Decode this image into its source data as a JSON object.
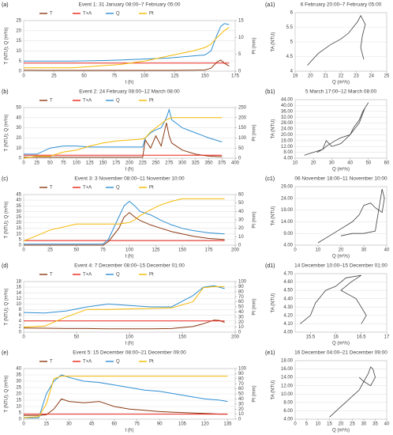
{
  "chart_data": [
    {
      "type": "line",
      "panel_label": "(a)",
      "title": "Event 1: 31 January 08:00–7 February 05:00",
      "xlabel": "t (h)",
      "ylabel": "T (NTU); Q (m³/s)",
      "y2label": "Pt (mm)",
      "x": [
        0,
        20,
        40,
        60,
        80,
        100,
        120,
        140,
        150,
        155,
        160,
        163,
        166,
        170
      ],
      "series": [
        {
          "name": "T",
          "color": "#8b3a14",
          "values": [
            0.5,
            0.4,
            0.4,
            0.4,
            0.4,
            0.4,
            0.4,
            0.5,
            0.6,
            1.5,
            4.5,
            5.5,
            4,
            2.5
          ]
        },
        {
          "name": "T+A",
          "color": "#e8231b",
          "values": [
            4,
            4,
            4,
            4,
            4,
            4,
            4,
            4,
            4,
            4,
            4,
            4,
            4,
            4
          ]
        },
        {
          "name": "Q",
          "color": "#2f8fd3",
          "values": [
            5,
            5,
            5,
            5.2,
            5.5,
            6,
            6.5,
            7.5,
            8,
            10,
            18,
            22,
            23.5,
            23
          ]
        },
        {
          "name": "Pt",
          "color": "#f5b800",
          "axis": "y2",
          "values": [
            1,
            1,
            1,
            1.5,
            2,
            3,
            4.5,
            6,
            7,
            8,
            10,
            11,
            12,
            13
          ]
        }
      ],
      "xlim": [
        0,
        175
      ],
      "xticks": [
        0,
        25,
        50,
        75,
        100,
        125,
        150,
        175
      ],
      "ylim": [
        0,
        25
      ],
      "yticks": [
        0,
        5,
        10,
        15,
        20,
        25
      ],
      "y2lim": [
        0,
        15
      ],
      "y2ticks": [
        0,
        5,
        10,
        15
      ],
      "grid": true
    },
    {
      "type": "line",
      "panel_label": "(a1)",
      "title": "6 February 20:00–7 February 05:00",
      "xlabel": "Q (m³/s)",
      "ylabel": "TA (NTU)",
      "color": "#404040",
      "x": [
        19.8,
        20.5,
        21.3,
        22,
        22.5,
        22.8,
        23.1,
        23.3,
        23.6,
        23.4,
        23.3,
        23.5
      ],
      "values": [
        4.2,
        4.6,
        4.9,
        5.1,
        5.3,
        5.5,
        5.7,
        5.9,
        5.6,
        5.2,
        4.8,
        4.4
      ],
      "xlim": [
        19,
        25
      ],
      "xticks": [
        19,
        20,
        21,
        22,
        23,
        24,
        25
      ],
      "ylim": [
        4,
        6
      ],
      "yticks": [
        4,
        4.5,
        5,
        5.5,
        6
      ],
      "grid": true
    },
    {
      "type": "line",
      "panel_label": "(b)",
      "title": "Event 2: 24 February 08:00–12 March 08:00",
      "xlabel": "t (h)",
      "ylabel": "T (NTU); Q (m³/s)",
      "y2label": "Pt (mm)",
      "x": [
        0,
        25,
        50,
        75,
        100,
        125,
        150,
        175,
        200,
        225,
        230,
        240,
        250,
        260,
        270,
        275,
        280,
        300,
        325,
        350,
        375
      ],
      "series": [
        {
          "name": "T",
          "color": "#8b3a14",
          "values": [
            1,
            1,
            1,
            1,
            1,
            1,
            1,
            1,
            1,
            1,
            18,
            10,
            22,
            12,
            35,
            22,
            15,
            8,
            4,
            2,
            1.5
          ]
        },
        {
          "name": "T+A",
          "color": "#e8231b",
          "values": [
            3,
            3,
            3,
            3,
            3,
            3,
            3,
            3,
            3,
            3,
            3,
            3,
            3,
            3,
            3,
            3,
            3,
            3,
            3,
            3,
            3
          ]
        },
        {
          "name": "Q",
          "color": "#2f8fd3",
          "values": [
            4,
            4,
            10,
            12,
            12,
            11,
            11,
            11,
            11,
            11,
            20,
            25,
            28,
            30,
            40,
            48,
            38,
            30,
            25,
            20,
            16
          ]
        },
        {
          "name": "Pt",
          "color": "#f5b800",
          "axis": "y2",
          "values": [
            0,
            10,
            10,
            30,
            40,
            60,
            75,
            85,
            90,
            95,
            100,
            130,
            150,
            170,
            190,
            195,
            200,
            200,
            200,
            200,
            200
          ]
        }
      ],
      "xlim": [
        0,
        400
      ],
      "xticks": [
        0,
        25,
        50,
        75,
        100,
        125,
        150,
        175,
        200,
        225,
        250,
        275,
        300,
        325,
        350,
        375,
        400
      ],
      "ylim": [
        0,
        50
      ],
      "yticks": [
        0,
        10,
        20,
        30,
        40,
        50
      ],
      "y2lim": [
        0,
        250
      ],
      "y2ticks": [
        0,
        50,
        100,
        150,
        200,
        250
      ],
      "grid": true
    },
    {
      "type": "line",
      "panel_label": "(b1)",
      "title": "5 March 17:00–12 March 08:00",
      "xlabel": "Q (m³/s)",
      "ylabel": "TA (NTU)",
      "color": "#404040",
      "x": [
        15,
        20,
        25,
        27,
        30,
        35,
        40,
        45,
        48,
        50,
        47,
        45,
        42,
        40,
        35,
        32,
        28,
        25,
        22
      ],
      "values": [
        6,
        8,
        10,
        16,
        12,
        14,
        20,
        28,
        38,
        42,
        36,
        30,
        25,
        20,
        18,
        16,
        13,
        10,
        8
      ],
      "xlim": [
        10,
        60
      ],
      "xticks": [
        10,
        20,
        30,
        40,
        50,
        60
      ],
      "ylim": [
        4,
        44
      ],
      "yticks": [
        {
          "value": 4,
          "label": "4.00"
        },
        {
          "value": 8,
          "label": "8.00"
        },
        {
          "value": 12,
          "label": "12.00"
        },
        {
          "value": 16,
          "label": "16.00"
        },
        {
          "value": 20,
          "label": "20.00"
        },
        {
          "value": 24,
          "label": "24.00"
        },
        {
          "value": 28,
          "label": "28.00"
        },
        {
          "value": 32,
          "label": "32.00"
        },
        {
          "value": 36,
          "label": "36.00"
        },
        {
          "value": 40,
          "label": "40.00"
        },
        {
          "value": 44,
          "label": "44.00"
        }
      ],
      "grid": true
    },
    {
      "type": "line",
      "panel_label": "(c)",
      "title": "Event 3: 3 November 08:00–11 November 10:00",
      "xlabel": "t (h)",
      "ylabel": "T (NTU); Q (m³/s)",
      "y2label": "Pt (mm)",
      "x": [
        0,
        10,
        25,
        50,
        75,
        80,
        90,
        95,
        100,
        105,
        110,
        120,
        130,
        140,
        150,
        160,
        175,
        190
      ],
      "series": [
        {
          "name": "T",
          "color": "#8b3a14",
          "values": [
            0,
            0,
            0,
            0,
            0,
            3,
            15,
            25,
            29,
            25,
            22,
            18,
            15,
            12,
            10,
            8,
            6,
            5
          ]
        },
        {
          "name": "T+A",
          "color": "#e8231b",
          "values": [
            4,
            4,
            4,
            4,
            4,
            4,
            4,
            4,
            4,
            4,
            4,
            4,
            4,
            4,
            4,
            4,
            4,
            4
          ]
        },
        {
          "name": "Q",
          "color": "#2f8fd3",
          "values": [
            1,
            1,
            1,
            1,
            1,
            5,
            25,
            35,
            39,
            35,
            30,
            27,
            22,
            18,
            15,
            13,
            11,
            10
          ]
        },
        {
          "name": "Pt",
          "color": "#f5b800",
          "axis": "y2",
          "values": [
            5,
            10,
            18,
            25,
            25,
            25,
            25,
            26,
            27,
            30,
            35,
            42,
            48,
            52,
            55,
            55,
            55,
            55
          ]
        }
      ],
      "xlim": [
        0,
        200
      ],
      "xticks": [
        0,
        25,
        50,
        75,
        100,
        125,
        150,
        175,
        200
      ],
      "ylim": [
        0,
        45
      ],
      "yticks": [
        0,
        5,
        10,
        15,
        20,
        25,
        30,
        35,
        40,
        45
      ],
      "y2lim": [
        0,
        60
      ],
      "y2ticks": [
        0,
        10,
        20,
        30,
        40,
        50,
        60
      ],
      "grid": true
    },
    {
      "type": "line",
      "panel_label": "(c1)",
      "title": "06 November 18:00–11 November 10:00",
      "xlabel": "Q (m³/s)",
      "ylabel": "TA (NTU)",
      "color": "#404040",
      "x": [
        10,
        15,
        20,
        25,
        28,
        30,
        33,
        35,
        38,
        39,
        38,
        35,
        30,
        25,
        20
      ],
      "values": [
        5,
        8,
        11,
        14,
        17,
        21,
        22,
        20,
        18,
        24,
        28,
        10,
        9,
        9,
        8
      ],
      "xlim": [
        0,
        40
      ],
      "xticks": [
        0,
        10,
        20,
        30,
        40
      ],
      "ylim": [
        4,
        29
      ],
      "yticks": [
        {
          "value": 4,
          "label": "4.00"
        },
        {
          "value": 9,
          "label": "9.00"
        },
        {
          "value": 14,
          "label": "14.00"
        },
        {
          "value": 19,
          "label": "19.00"
        },
        {
          "value": 24,
          "label": "24.00"
        },
        {
          "value": 29,
          "label": "29.00"
        }
      ],
      "grid": true
    },
    {
      "type": "line",
      "panel_label": "(d)",
      "title": "Event 4: 7 December 08:00–15 December 01:00",
      "xlabel": "t (h)",
      "ylabel": "T (NTU); Q (m³/s)",
      "y2label": "Pt (mm)",
      "x": [
        0,
        20,
        40,
        60,
        80,
        100,
        120,
        140,
        160,
        170,
        180,
        185,
        190
      ],
      "series": [
        {
          "name": "T",
          "color": "#8b3a14",
          "values": [
            1.5,
            1.4,
            1.3,
            1.3,
            1.2,
            1.2,
            1.2,
            1.3,
            2,
            3,
            4.3,
            4.2,
            3.5
          ]
        },
        {
          "name": "T+A",
          "color": "#e8231b",
          "values": [
            4,
            4,
            4,
            4,
            4,
            4,
            4,
            4,
            4,
            4,
            4,
            4,
            4
          ]
        },
        {
          "name": "Q",
          "color": "#2f8fd3",
          "values": [
            7,
            6.8,
            7.5,
            9,
            10,
            9.5,
            9,
            9,
            13,
            16,
            16.5,
            16,
            15.5
          ]
        },
        {
          "name": "Pt",
          "color": "#f5b800",
          "axis": "y2",
          "values": [
            10,
            12,
            30,
            45,
            45,
            46,
            47,
            48,
            60,
            88,
            90,
            90,
            90
          ]
        }
      ],
      "xlim": [
        0,
        200
      ],
      "xticks": [
        0,
        50,
        100,
        150,
        200
      ],
      "ylim": [
        0,
        18
      ],
      "yticks": [
        0,
        2,
        4,
        6,
        8,
        10,
        12,
        14,
        16,
        18
      ],
      "y2lim": [
        0,
        100
      ],
      "y2ticks": [
        0,
        10,
        20,
        30,
        40,
        50,
        60,
        70,
        80,
        90,
        100
      ],
      "grid": true
    },
    {
      "type": "line",
      "panel_label": "(d1)",
      "title": "14 December 10:00–15 December 01:00",
      "xlabel": "Q (m³/s)",
      "ylabel": "TA (NTU)",
      "color": "#404040",
      "x": [
        15.3,
        15.5,
        15.6,
        15.8,
        16,
        16.2,
        16.5,
        16.3,
        16.1,
        16.4,
        16.6,
        16.5
      ],
      "values": [
        4.1,
        4.2,
        4.35,
        4.5,
        4.55,
        4.65,
        4.68,
        4.6,
        4.5,
        4.4,
        4.2,
        4.1
      ],
      "xlim": [
        15.2,
        17
      ],
      "xticks": [
        15.5,
        16,
        16.5,
        17
      ],
      "ylim": [
        4,
        4.7
      ],
      "yticks": [
        {
          "value": 4,
          "label": "4.00"
        },
        {
          "value": 4.1,
          "label": "4.10"
        },
        {
          "value": 4.2,
          "label": "4.20"
        },
        {
          "value": 4.3,
          "label": "4.30"
        },
        {
          "value": 4.4,
          "label": "4.40"
        },
        {
          "value": 4.5,
          "label": "4.50"
        },
        {
          "value": 4.6,
          "label": "4.60"
        },
        {
          "value": 4.7,
          "label": "4.70"
        }
      ],
      "grid": true
    },
    {
      "type": "line",
      "panel_label": "(e)",
      "title": "Event 5: 15 December 08:00–21 December 09:00",
      "xlabel": "t (h)",
      "ylabel": "T (NTU); Q (m³/s)",
      "y2label": "Pt (mm)",
      "x": [
        0,
        10,
        15,
        20,
        25,
        30,
        40,
        50,
        60,
        70,
        80,
        90,
        100,
        110,
        120,
        130,
        135
      ],
      "series": [
        {
          "name": "T",
          "color": "#8b3a14",
          "values": [
            3,
            3,
            3.5,
            8,
            16,
            14,
            13,
            14,
            10,
            8,
            7,
            6,
            5.5,
            5,
            4.5,
            4,
            4
          ]
        },
        {
          "name": "T+A",
          "color": "#e8231b",
          "values": [
            4,
            4,
            4,
            4,
            4,
            4,
            4,
            4,
            4,
            4,
            4,
            4,
            4,
            4,
            4,
            4,
            4
          ]
        },
        {
          "name": "Q",
          "color": "#2f8fd3",
          "values": [
            1,
            1,
            20,
            30,
            35,
            33,
            30,
            29,
            27,
            25,
            23,
            22,
            20,
            18,
            16,
            15,
            14
          ]
        },
        {
          "name": "Pt",
          "color": "#f5b800",
          "axis": "y2",
          "values": [
            3,
            5,
            30,
            80,
            85,
            85,
            85,
            85,
            85,
            85,
            85,
            85,
            85,
            85,
            85,
            85,
            85
          ]
        }
      ],
      "xlim": [
        0,
        140
      ],
      "xticks": [
        0,
        15,
        30,
        45,
        60,
        75,
        90,
        105,
        120,
        135
      ],
      "ylim": [
        0,
        40
      ],
      "yticks": [
        0,
        5,
        10,
        15,
        20,
        25,
        30,
        35,
        40
      ],
      "y2lim": [
        0,
        100
      ],
      "y2ticks": [
        0,
        10,
        20,
        30,
        40,
        50,
        60,
        70,
        80,
        90,
        100
      ],
      "grid": true
    },
    {
      "type": "line",
      "panel_label": "(e1)",
      "title": "16 December 04:00–21 December 09:00",
      "xlabel": "Q (m³/s)",
      "ylabel": "TA (NTU)",
      "color": "#404040",
      "x": [
        15,
        18,
        20,
        22,
        25,
        28,
        30,
        32,
        33,
        34,
        35,
        33,
        30,
        28
      ],
      "values": [
        4.5,
        6,
        7,
        8,
        9.5,
        11,
        13,
        15,
        16.5,
        16,
        14,
        12,
        13,
        14
      ],
      "xlim": [
        0,
        40
      ],
      "xticks": [
        0,
        5,
        10,
        15,
        20,
        25,
        30,
        35,
        40
      ],
      "ylim": [
        4,
        18
      ],
      "yticks": [
        {
          "value": 4,
          "label": "4.00"
        },
        {
          "value": 6,
          "label": "6.00"
        },
        {
          "value": 8,
          "label": "8.00"
        },
        {
          "value": 10,
          "label": "10.00"
        },
        {
          "value": 12,
          "label": "12.00"
        },
        {
          "value": 14,
          "label": "14.00"
        },
        {
          "value": 16,
          "label": "16.00"
        },
        {
          "value": 18,
          "label": "18.00"
        }
      ],
      "grid": true
    }
  ]
}
